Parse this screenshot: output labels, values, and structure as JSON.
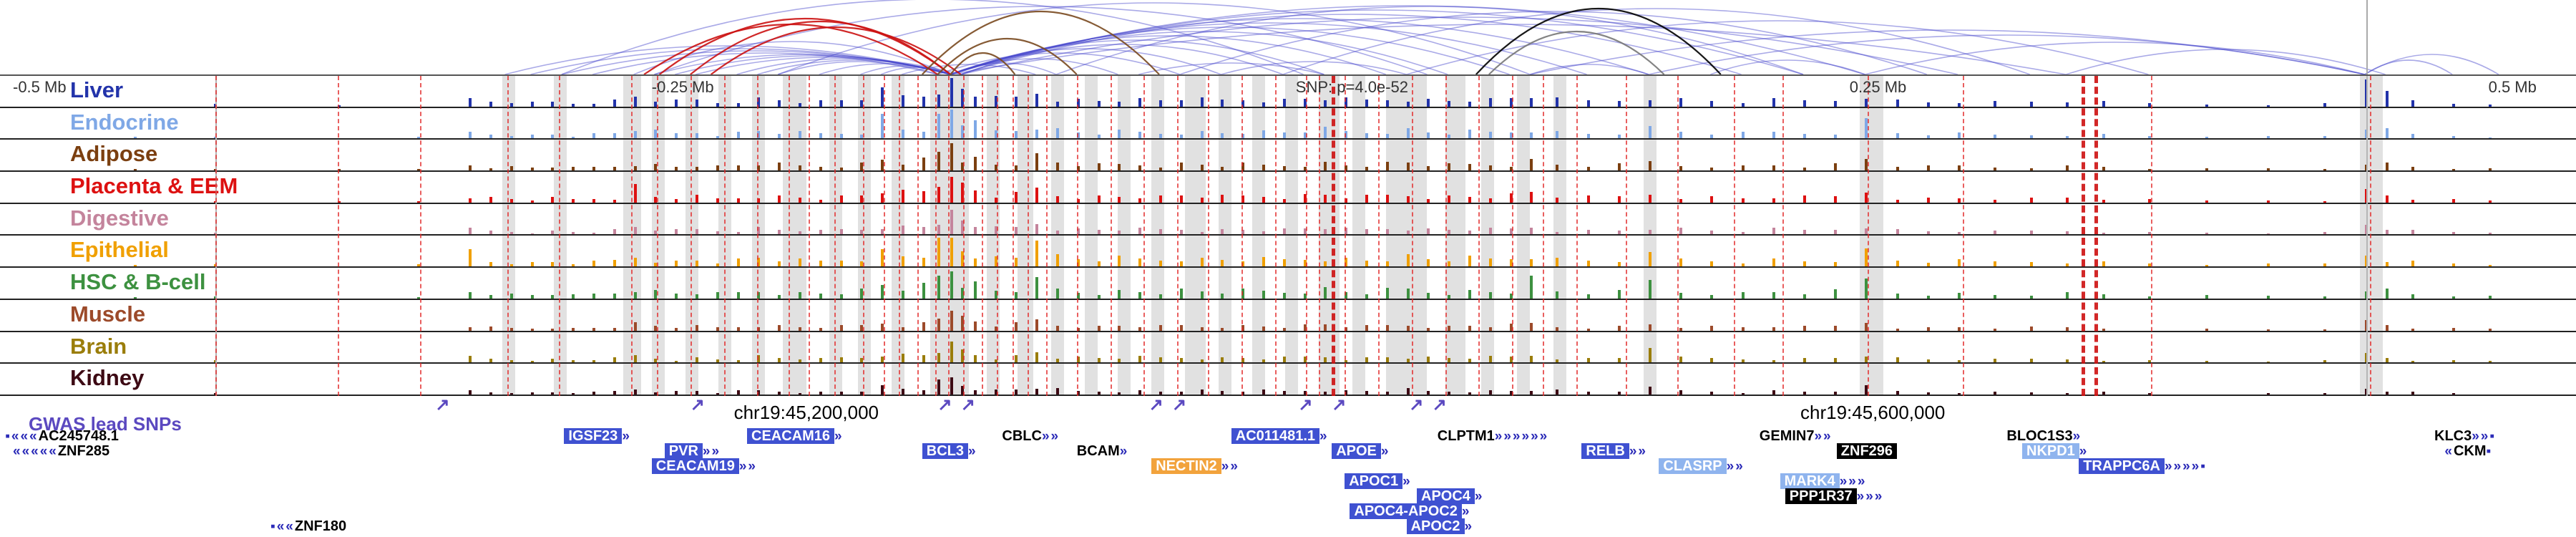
{
  "gwas_label": "GWAS lead SNPs",
  "chart_data": {
    "type": "genome-browser",
    "arc_color": "#4444cc",
    "ruler_labels": [
      {
        "text": "-0.5 Mb",
        "x": 0.5
      },
      {
        "text": "-0.25 Mb",
        "x": 25.3
      },
      {
        "text": "SNP: p=4.0e-52",
        "x": 50.3
      },
      {
        "text": "0.25 Mb",
        "x": 71.8
      },
      {
        "text": "0.5 Mb",
        "x": 96.6
      }
    ],
    "coord_labels": [
      {
        "text": "chr19:45,200,000",
        "x": 31.3
      },
      {
        "text": "chr19:45,600,000",
        "x": 72.7
      }
    ],
    "tracks": [
      {
        "label": "Liver",
        "color": "#2233aa",
        "scale": 0.95,
        "extras": [
          [
            36.9,
            1.0
          ],
          [
            91.8,
            0.95
          ],
          [
            92.6,
            0.55
          ]
        ]
      },
      {
        "label": "Endocrine",
        "color": "#7fa8e6",
        "scale": 0.9,
        "extras": [
          [
            34.2,
            0.85
          ],
          [
            36.9,
            1.0
          ],
          [
            72.4,
            0.7
          ]
        ]
      },
      {
        "label": "Adipose",
        "color": "#7b3f10",
        "scale": 0.8,
        "extras": [
          [
            36.9,
            0.95
          ]
        ]
      },
      {
        "label": "Placenta & EEM",
        "color": "#dd1111",
        "scale": 0.85,
        "extras": [
          [
            24.6,
            0.65
          ],
          [
            36.9,
            0.9
          ]
        ]
      },
      {
        "label": "Digestive",
        "color": "#c4849c",
        "scale": 0.7,
        "extras": [
          [
            36.9,
            0.85
          ]
        ]
      },
      {
        "label": "Epithelial",
        "color": "#f0a000",
        "scale": 1.0,
        "extras": [
          [
            18.2,
            0.6
          ],
          [
            36.9,
            1.0
          ],
          [
            40.2,
            0.9
          ]
        ]
      },
      {
        "label": "HSC & B-cell",
        "color": "#3d9140",
        "scale": 0.95,
        "extras": [
          [
            36.9,
            0.95
          ],
          [
            59.4,
            0.8
          ],
          [
            64.0,
            0.65
          ],
          [
            72.4,
            0.7
          ]
        ]
      },
      {
        "label": "Muscle",
        "color": "#9c4a2a",
        "scale": 0.6,
        "extras": [
          [
            36.9,
            0.7
          ]
        ]
      },
      {
        "label": "Brain",
        "color": "#9a7d0a",
        "scale": 0.65,
        "extras": [
          [
            36.9,
            0.7
          ],
          [
            64.0,
            0.5
          ]
        ]
      },
      {
        "label": "Kidney",
        "color": "#3d0a14",
        "scale": 0.5,
        "extras": [
          [
            36.9,
            0.6
          ]
        ]
      }
    ],
    "signal_columns": [
      [
        5.2,
        0.06
      ],
      [
        8.3,
        0.1
      ],
      [
        13.1,
        0.05
      ],
      [
        16.2,
        0.06
      ],
      [
        18.2,
        0.3
      ],
      [
        19.0,
        0.22
      ],
      [
        19.8,
        0.18
      ],
      [
        20.6,
        0.15
      ],
      [
        21.4,
        0.2
      ],
      [
        22.2,
        0.14
      ],
      [
        23.0,
        0.18
      ],
      [
        23.8,
        0.25
      ],
      [
        24.6,
        0.45
      ],
      [
        25.4,
        0.3
      ],
      [
        26.2,
        0.22
      ],
      [
        27.0,
        0.28
      ],
      [
        27.8,
        0.2
      ],
      [
        28.6,
        0.25
      ],
      [
        29.4,
        0.35
      ],
      [
        30.2,
        0.3
      ],
      [
        31.0,
        0.25
      ],
      [
        31.8,
        0.22
      ],
      [
        32.6,
        0.28
      ],
      [
        33.4,
        0.35
      ],
      [
        34.2,
        0.6
      ],
      [
        35.0,
        0.45
      ],
      [
        35.8,
        0.5
      ],
      [
        36.4,
        0.9
      ],
      [
        36.9,
        1.0
      ],
      [
        37.3,
        0.8
      ],
      [
        37.8,
        0.6
      ],
      [
        38.6,
        0.35
      ],
      [
        39.4,
        0.4
      ],
      [
        40.2,
        0.7
      ],
      [
        41.0,
        0.4
      ],
      [
        41.8,
        0.3
      ],
      [
        42.6,
        0.28
      ],
      [
        43.4,
        0.32
      ],
      [
        44.2,
        0.3
      ],
      [
        45.0,
        0.28
      ],
      [
        45.8,
        0.35
      ],
      [
        46.6,
        0.3
      ],
      [
        47.4,
        0.28
      ],
      [
        48.2,
        0.32
      ],
      [
        49.0,
        0.3
      ],
      [
        49.8,
        0.28
      ],
      [
        50.6,
        0.35
      ],
      [
        51.4,
        0.4
      ],
      [
        52.2,
        0.3
      ],
      [
        53.0,
        0.28
      ],
      [
        53.8,
        0.35
      ],
      [
        54.6,
        0.4
      ],
      [
        55.4,
        0.3
      ],
      [
        56.2,
        0.28
      ],
      [
        57.0,
        0.32
      ],
      [
        57.8,
        0.3
      ],
      [
        58.6,
        0.35
      ],
      [
        59.4,
        0.5
      ],
      [
        60.4,
        0.3
      ],
      [
        61.6,
        0.25
      ],
      [
        62.8,
        0.28
      ],
      [
        64.0,
        0.45
      ],
      [
        65.2,
        0.3
      ],
      [
        66.4,
        0.25
      ],
      [
        67.6,
        0.22
      ],
      [
        68.8,
        0.28
      ],
      [
        70.0,
        0.25
      ],
      [
        71.2,
        0.3
      ],
      [
        72.4,
        0.6
      ],
      [
        73.6,
        0.25
      ],
      [
        74.8,
        0.2
      ],
      [
        76.0,
        0.22
      ],
      [
        77.4,
        0.18
      ],
      [
        78.8,
        0.2
      ],
      [
        80.2,
        0.22
      ],
      [
        81.6,
        0.18
      ],
      [
        83.4,
        0.12
      ],
      [
        85.6,
        0.1
      ],
      [
        88.0,
        0.1
      ],
      [
        90.2,
        0.12
      ],
      [
        91.8,
        0.55
      ],
      [
        92.6,
        0.35
      ],
      [
        93.6,
        0.2
      ],
      [
        95.2,
        0.12
      ],
      [
        96.6,
        0.1
      ]
    ],
    "arcs": [
      [
        19.6,
        36.9,
        40
      ],
      [
        20.6,
        36.9,
        36
      ],
      [
        21.8,
        36.9,
        33
      ],
      [
        23.0,
        36.4,
        30
      ],
      [
        24.6,
        36.9,
        46
      ],
      [
        25.4,
        36.9,
        28
      ],
      [
        26.2,
        36.9,
        26
      ],
      [
        27.0,
        37.3,
        24
      ],
      [
        28.6,
        36.9,
        22
      ],
      [
        29.4,
        36.9,
        20
      ],
      [
        30.2,
        36.4,
        18
      ],
      [
        31.8,
        36.9,
        15
      ],
      [
        33.4,
        36.9,
        12
      ],
      [
        34.2,
        36.9,
        10
      ],
      [
        35.0,
        40.2,
        14
      ],
      [
        36.9,
        41.0,
        16
      ],
      [
        36.9,
        43.4,
        22
      ],
      [
        36.4,
        45.8,
        30
      ],
      [
        36.9,
        47.4,
        36
      ],
      [
        37.3,
        49.8,
        42
      ],
      [
        36.9,
        51.4,
        48
      ],
      [
        36.9,
        53.8,
        54
      ],
      [
        37.3,
        56.2,
        60
      ],
      [
        36.9,
        58.6,
        66
      ],
      [
        36.9,
        61.6,
        72
      ],
      [
        36.9,
        64.0,
        78
      ],
      [
        37.3,
        67.6,
        84
      ],
      [
        36.9,
        70.0,
        90
      ],
      [
        36.9,
        72.4,
        96
      ],
      [
        37.3,
        76.0,
        80
      ],
      [
        36.9,
        80.2,
        70
      ],
      [
        30.2,
        59.4,
        100
      ],
      [
        25.4,
        55.4,
        95
      ],
      [
        21.8,
        50.6,
        105
      ],
      [
        41.0,
        70.0,
        95
      ],
      [
        45.8,
        74.8,
        88
      ],
      [
        49.8,
        78.8,
        92
      ],
      [
        54.6,
        83.4,
        75
      ],
      [
        59.4,
        91.8,
        62
      ],
      [
        64.0,
        91.8,
        55
      ],
      [
        72.4,
        91.8,
        45
      ],
      [
        80.2,
        92.6,
        35
      ],
      [
        91.8,
        95.2,
        20
      ],
      [
        91.8,
        97.0,
        28
      ],
      [
        66.4,
        72.4,
        20
      ],
      [
        59.4,
        64.0,
        14
      ],
      [
        44.2,
        51.4,
        16
      ],
      [
        47.4,
        54.6,
        18
      ],
      [
        25.6,
        36.9,
        78,
        "#cc1111"
      ],
      [
        26.8,
        36.9,
        74,
        "#cc1111"
      ],
      [
        25.0,
        36.4,
        70,
        "#cc1111"
      ],
      [
        27.6,
        37.3,
        66,
        "#cc1111"
      ],
      [
        35.8,
        45.0,
        88,
        "#7a4a20"
      ],
      [
        36.4,
        41.8,
        50,
        "#7a4a20"
      ],
      [
        36.9,
        39.4,
        30,
        "#7a4a20"
      ],
      [
        57.3,
        66.8,
        92,
        "#000000"
      ],
      [
        57.8,
        64.6,
        60,
        "#777777"
      ]
    ],
    "snp_lines": [
      8.35,
      13.1,
      16.3,
      19.7,
      21.7,
      24.5,
      25.5,
      26.8,
      28.1,
      29.4,
      30.6,
      31.4,
      32.4,
      33.5,
      34.3,
      34.9,
      35.6,
      36.3,
      36.8,
      37.4,
      38.1,
      38.7,
      39.3,
      39.9,
      40.6,
      41.8,
      43.1,
      44.4,
      45.7,
      46.9,
      48.2,
      49.5,
      50.7,
      51.2,
      52.2,
      53.5,
      54.8,
      56.1,
      57.4,
      58.7,
      59.9,
      61.2,
      63.1,
      65.1,
      67.3,
      69.2,
      72.5,
      76.2,
      83.5,
      92.0
    ],
    "strong_snp_lines": [
      51.7,
      80.8,
      81.3
    ],
    "guides": [
      8.35,
      91.85
    ],
    "highlights": [
      [
        19.5,
        0.5
      ],
      [
        21.5,
        0.5
      ],
      [
        24.2,
        0.7
      ],
      [
        25.3,
        0.5
      ],
      [
        26.6,
        0.5
      ],
      [
        27.9,
        0.5
      ],
      [
        29.2,
        0.5
      ],
      [
        30.4,
        0.9
      ],
      [
        32.2,
        0.5
      ],
      [
        33.3,
        0.5
      ],
      [
        34.6,
        0.5
      ],
      [
        36.1,
        1.5
      ],
      [
        38.3,
        0.5
      ],
      [
        39.5,
        0.6
      ],
      [
        40.8,
        0.5
      ],
      [
        42.1,
        0.5
      ],
      [
        43.4,
        0.5
      ],
      [
        44.7,
        0.5
      ],
      [
        46.0,
        0.8
      ],
      [
        47.3,
        0.5
      ],
      [
        48.6,
        0.5
      ],
      [
        49.9,
        0.5
      ],
      [
        51.2,
        0.8
      ],
      [
        52.5,
        0.5
      ],
      [
        53.8,
        1.6
      ],
      [
        56.1,
        0.8
      ],
      [
        57.5,
        0.5
      ],
      [
        58.9,
        0.5
      ],
      [
        60.3,
        0.5
      ],
      [
        63.8,
        0.5
      ],
      [
        72.2,
        0.9
      ],
      [
        91.6,
        0.9
      ]
    ],
    "snp_markers": [
      16.9,
      26.8,
      36.4,
      37.3,
      44.6,
      45.5,
      50.4,
      51.7,
      54.7,
      55.6
    ],
    "genes": [
      {
        "name": "AC245748.1",
        "x": 0.2,
        "row": 0,
        "style": "plain",
        "pre": "▪«««",
        "post": ""
      },
      {
        "name": "IGSF23",
        "x": 21.9,
        "row": 0,
        "style": "blue",
        "pre": "",
        "post": "»"
      },
      {
        "name": "CEACAM16",
        "x": 29.0,
        "row": 0,
        "style": "blue",
        "pre": "",
        "post": "»"
      },
      {
        "name": "CBLC",
        "x": 38.9,
        "row": 0,
        "style": "plain",
        "pre": "",
        "post": "»»"
      },
      {
        "name": "AC011481.1",
        "x": 47.8,
        "row": 0,
        "style": "blue",
        "pre": "",
        "post": "»"
      },
      {
        "name": "CLPTM1",
        "x": 55.8,
        "row": 0,
        "style": "plain",
        "pre": "",
        "post": "»»»»»»"
      },
      {
        "name": "GEMIN7",
        "x": 68.3,
        "row": 0,
        "style": "plain",
        "pre": "",
        "post": "»»"
      },
      {
        "name": "BLOC1S3",
        "x": 77.9,
        "row": 0,
        "style": "plain",
        "pre": "",
        "post": "»"
      },
      {
        "name": "KLC3",
        "x": 94.5,
        "row": 0,
        "style": "plain",
        "pre": "",
        "post": "»»▪"
      },
      {
        "name": "ZNF285",
        "x": 0.5,
        "row": 1,
        "style": "plain",
        "pre": "«««««",
        "post": ""
      },
      {
        "name": "PVR",
        "x": 25.8,
        "row": 1,
        "style": "blue",
        "pre": "",
        "post": "»»"
      },
      {
        "name": "BCL3",
        "x": 35.8,
        "row": 1,
        "style": "blue",
        "pre": "",
        "post": "»"
      },
      {
        "name": "BCAM",
        "x": 41.8,
        "row": 1,
        "style": "plain",
        "pre": "",
        "post": "»"
      },
      {
        "name": "APOE",
        "x": 51.7,
        "row": 1,
        "style": "blue",
        "pre": "",
        "post": "»"
      },
      {
        "name": "RELB",
        "x": 61.4,
        "row": 1,
        "style": "blue",
        "pre": "",
        "post": "»»"
      },
      {
        "name": "ZNF296",
        "x": 71.3,
        "row": 1,
        "style": "black",
        "pre": "",
        "post": ""
      },
      {
        "name": "NKPD1",
        "x": 78.5,
        "row": 1,
        "style": "lightblue",
        "pre": "",
        "post": "»"
      },
      {
        "name": "CKM",
        "x": 94.9,
        "row": 1,
        "style": "plain",
        "pre": "«",
        "post": "▪"
      },
      {
        "name": "CEACAM19",
        "x": 25.3,
        "row": 2,
        "style": "blue",
        "pre": "",
        "post": "»»"
      },
      {
        "name": "NECTIN2",
        "x": 44.7,
        "row": 2,
        "style": "orange",
        "pre": "",
        "post": "»»"
      },
      {
        "name": "CLASRP",
        "x": 64.4,
        "row": 2,
        "style": "lightblue",
        "pre": "",
        "post": "»»"
      },
      {
        "name": "TRAPPC6A",
        "x": 80.7,
        "row": 2,
        "style": "blue",
        "pre": "",
        "post": "»»»»▪"
      },
      {
        "name": "APOC1",
        "x": 52.2,
        "row": 3,
        "style": "blue",
        "pre": "",
        "post": "»"
      },
      {
        "name": "MARK4",
        "x": 69.1,
        "row": 3,
        "style": "lightblue",
        "pre": "",
        "post": "»»»"
      },
      {
        "name": "APOC4",
        "x": 55.0,
        "row": 4,
        "style": "blue",
        "pre": "",
        "post": "»"
      },
      {
        "name": "PPP1R37",
        "x": 69.3,
        "row": 4,
        "style": "black",
        "pre": "",
        "post": "»»»"
      },
      {
        "name": "APOC4-APOC2",
        "x": 52.4,
        "row": 5,
        "style": "blue",
        "pre": "",
        "post": "»"
      },
      {
        "name": "ZNF180",
        "x": 10.5,
        "row": 6,
        "style": "plain",
        "pre": "▪««",
        "post": ""
      },
      {
        "name": "APOC2",
        "x": 54.6,
        "row": 6,
        "style": "blue",
        "pre": "",
        "post": "»"
      }
    ]
  }
}
